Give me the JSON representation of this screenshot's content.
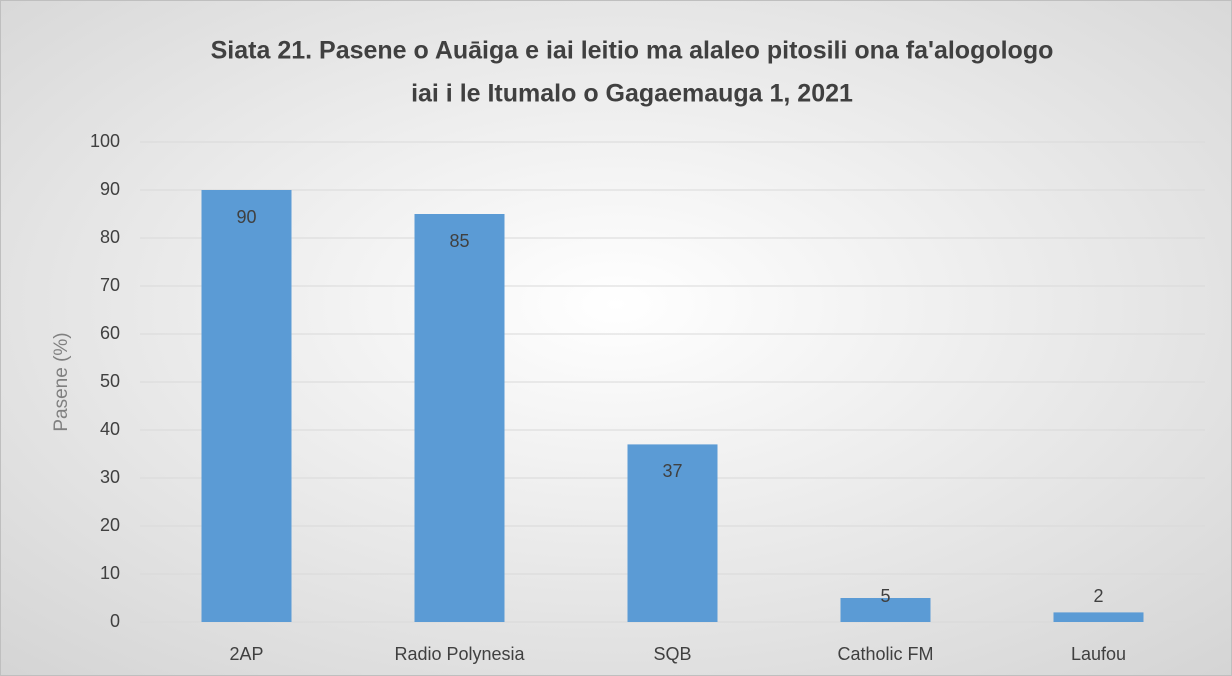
{
  "chart_data": {
    "type": "bar",
    "title": [
      "Siata 21. Pasene o Auāiga e iai leitio ma alaleo pitosili ona fa'alogologo",
      "iai i le Itumalo o Gagaemauga 1, 2021"
    ],
    "y_label": "Pasene (%)",
    "categories": [
      "2AP",
      "Radio Polynesia",
      "SQB",
      "Catholic FM",
      "Laufou"
    ],
    "values": [
      90,
      85,
      37,
      5,
      2
    ],
    "color": "#5b9bd5",
    "ylim": [
      0,
      100
    ],
    "yticks": [
      0,
      10,
      20,
      30,
      40,
      50,
      60,
      70,
      80,
      90,
      100
    ],
    "grid": true
  }
}
